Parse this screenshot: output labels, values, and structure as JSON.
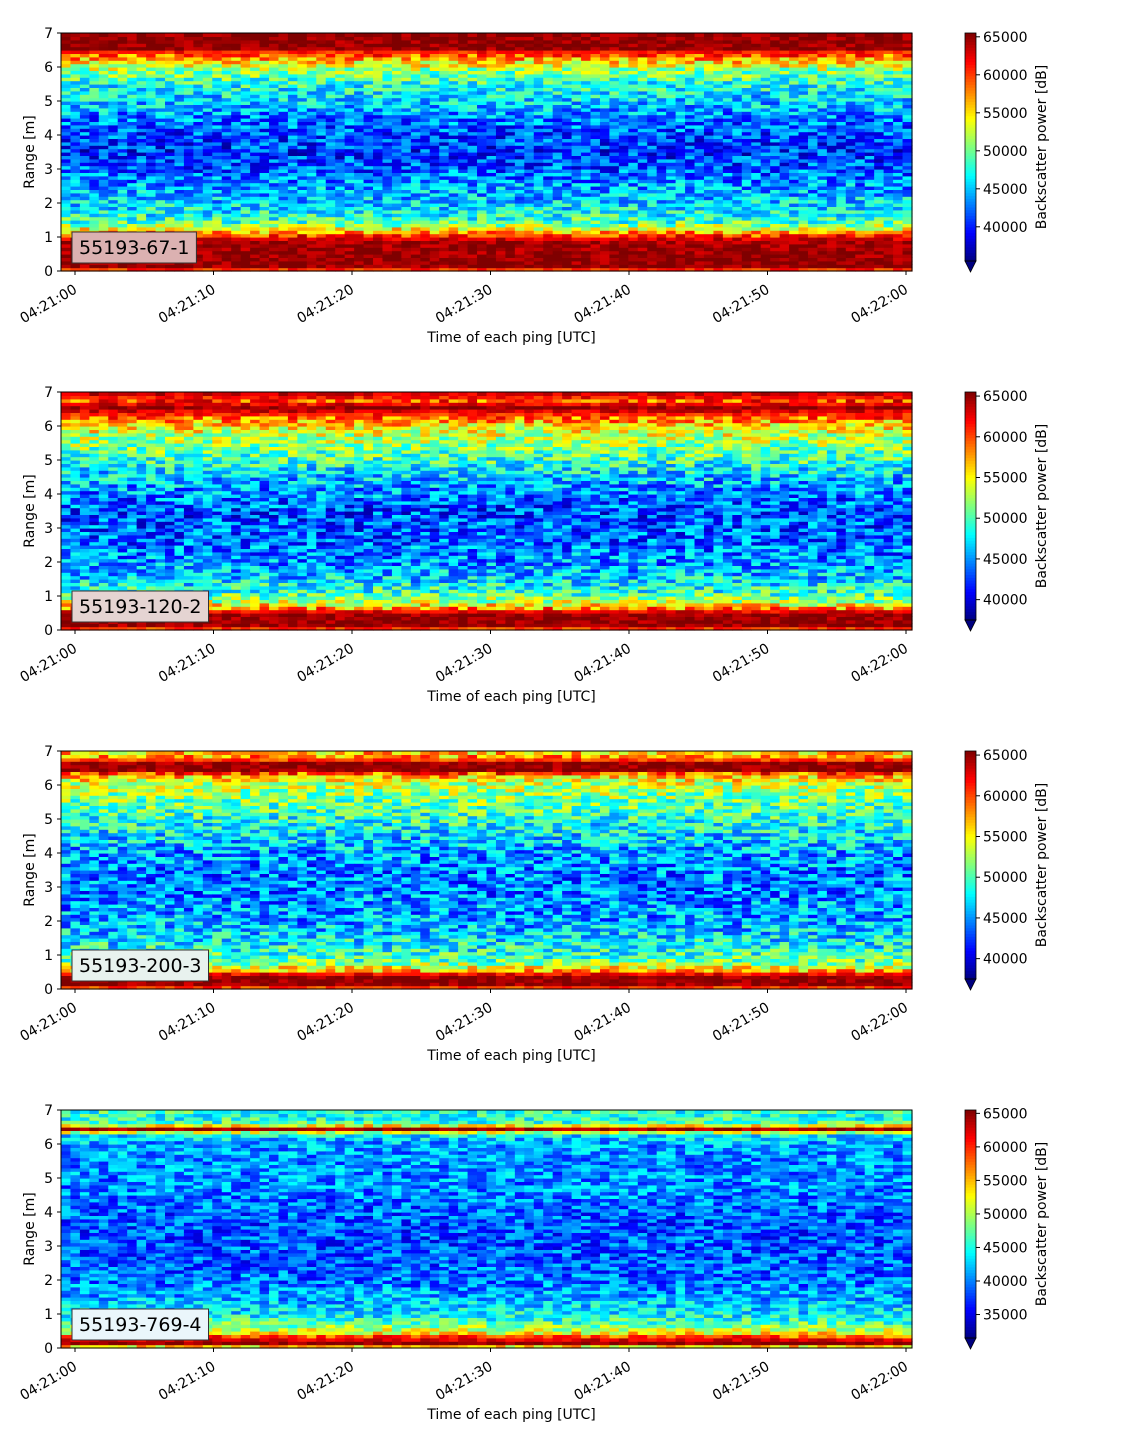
{
  "colormap": "jet",
  "colormap_stops": [
    "#00007f",
    "#0000ff",
    "#007fff",
    "#00ffff",
    "#7fff7f",
    "#ffff00",
    "#ff7f00",
    "#ff0000",
    "#7f0000"
  ],
  "chart_data": [
    {
      "type": "heatmap",
      "label": "55193-67-1",
      "label_box_color": "#dbb1b1",
      "xlabel": "Time of each ping [UTC]",
      "ylabel": "Range [m]",
      "colorbar_label": "Backscatter power [dB]",
      "x_start": "04:21:00",
      "x_end": "04:22:00",
      "x_ticks": [
        "04:21:00",
        "04:21:10",
        "04:21:20",
        "04:21:30",
        "04:21:40",
        "04:21:50",
        "04:22:00"
      ],
      "ylim": [
        0,
        7
      ],
      "y_ticks": [
        0,
        1,
        2,
        3,
        4,
        5,
        6,
        7
      ],
      "clim": [
        35500,
        65500
      ],
      "colorbar_ticks": [
        40000,
        45000,
        50000,
        55000,
        60000,
        65000
      ],
      "colorbar_extend": "min",
      "profile": {
        "range_m": [
          0.0,
          0.15,
          0.3,
          0.9,
          1.15,
          1.4,
          1.7,
          2.0,
          2.5,
          3.0,
          3.5,
          4.0,
          4.5,
          5.0,
          5.5,
          5.9,
          6.2,
          6.45,
          6.55,
          7.0
        ],
        "power": [
          58000,
          65000,
          65000,
          64500,
          57000,
          49500,
          47000,
          45500,
          44000,
          42000,
          40500,
          41500,
          43000,
          45500,
          47500,
          51000,
          56000,
          61000,
          65000,
          65000
        ]
      }
    },
    {
      "type": "heatmap",
      "label": "55193-120-2",
      "label_box_color": "#e5d4d2",
      "xlabel": "Time of each ping [UTC]",
      "ylabel": "Range [m]",
      "colorbar_label": "Backscatter power [dB]",
      "x_start": "04:21:00",
      "x_end": "04:22:00",
      "x_ticks": [
        "04:21:00",
        "04:21:10",
        "04:21:20",
        "04:21:30",
        "04:21:40",
        "04:21:50",
        "04:22:00"
      ],
      "ylim": [
        0,
        7
      ],
      "y_ticks": [
        0,
        1,
        2,
        3,
        4,
        5,
        6,
        7
      ],
      "clim": [
        37500,
        65500
      ],
      "colorbar_ticks": [
        40000,
        45000,
        50000,
        55000,
        60000,
        65000
      ],
      "colorbar_extend": "min",
      "profile": {
        "range_m": [
          0.0,
          0.15,
          0.5,
          0.65,
          0.85,
          1.1,
          1.5,
          2.0,
          2.5,
          3.0,
          3.5,
          4.0,
          4.5,
          5.0,
          5.5,
          5.9,
          6.2,
          6.4,
          6.55,
          6.75,
          7.0
        ],
        "power": [
          58000,
          65000,
          65000,
          58000,
          53000,
          49500,
          47000,
          45000,
          44000,
          43500,
          43000,
          44500,
          46500,
          49500,
          52000,
          54500,
          58000,
          62000,
          65000,
          60000,
          64000
        ]
      }
    },
    {
      "type": "heatmap",
      "label": "55193-200-3",
      "label_box_color": "#e8f2ee",
      "xlabel": "Time of each ping [UTC]",
      "ylabel": "Range [m]",
      "colorbar_label": "Backscatter power [dB]",
      "x_start": "04:21:00",
      "x_end": "04:22:00",
      "x_ticks": [
        "04:21:00",
        "04:21:10",
        "04:21:20",
        "04:21:30",
        "04:21:40",
        "04:21:50",
        "04:22:00"
      ],
      "ylim": [
        0,
        7
      ],
      "y_ticks": [
        0,
        1,
        2,
        3,
        4,
        5,
        6,
        7
      ],
      "clim": [
        37500,
        65500
      ],
      "colorbar_ticks": [
        40000,
        45000,
        50000,
        55000,
        60000,
        65000
      ],
      "colorbar_extend": "min",
      "profile": {
        "range_m": [
          0.0,
          0.15,
          0.4,
          0.55,
          0.8,
          1.2,
          1.6,
          2.0,
          2.5,
          3.0,
          3.5,
          4.0,
          4.5,
          5.0,
          5.5,
          6.0,
          6.3,
          6.45,
          6.65,
          6.8,
          7.0
        ],
        "power": [
          58000,
          65000,
          65000,
          57000,
          51000,
          48500,
          47000,
          45500,
          45000,
          44500,
          44500,
          45500,
          47000,
          49000,
          51000,
          53000,
          57000,
          65000,
          65000,
          58000,
          56000
        ]
      }
    },
    {
      "type": "heatmap",
      "label": "55193-769-4",
      "label_box_color": "#eaf6fb",
      "xlabel": "Time of each ping [UTC]",
      "ylabel": "Range [m]",
      "colorbar_label": "Backscatter power [dB]",
      "x_start": "04:21:00",
      "x_end": "04:22:00",
      "x_ticks": [
        "04:21:00",
        "04:21:10",
        "04:21:20",
        "04:21:30",
        "04:21:40",
        "04:21:50",
        "04:22:00"
      ],
      "ylim": [
        0,
        7
      ],
      "y_ticks": [
        0,
        1,
        2,
        3,
        4,
        5,
        6,
        7
      ],
      "clim": [
        31500,
        65500
      ],
      "colorbar_ticks": [
        35000,
        40000,
        45000,
        50000,
        55000,
        60000,
        65000
      ],
      "colorbar_extend": "min",
      "profile": {
        "range_m": [
          0.0,
          0.15,
          0.3,
          0.45,
          0.7,
          1.0,
          1.5,
          2.0,
          2.5,
          3.0,
          3.5,
          4.0,
          4.5,
          5.0,
          5.5,
          6.0,
          6.3,
          6.45,
          6.6,
          6.8,
          7.0
        ],
        "power": [
          48000,
          65000,
          61000,
          53000,
          47500,
          44000,
          41500,
          39500,
          39000,
          38500,
          38500,
          39000,
          40000,
          40500,
          40500,
          41000,
          44000,
          64000,
          47000,
          45000,
          46000
        ]
      }
    }
  ]
}
